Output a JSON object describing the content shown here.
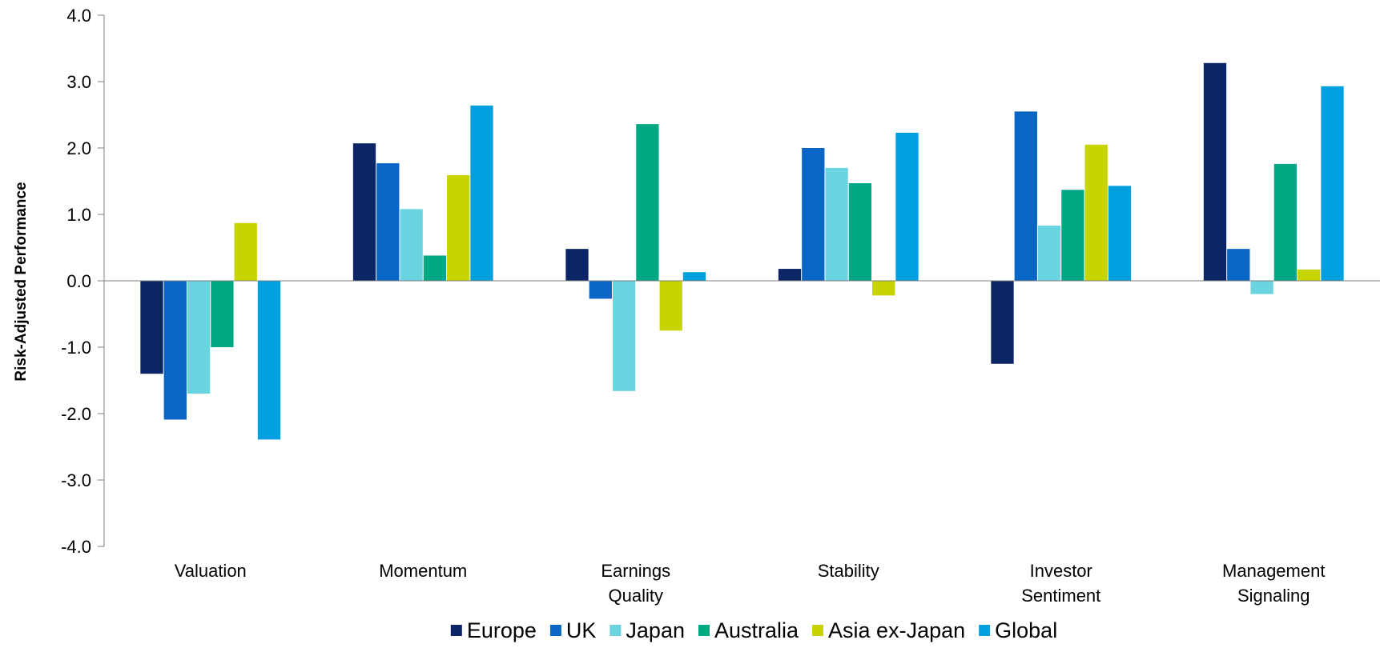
{
  "chart_data": {
    "type": "bar",
    "title": "",
    "xlabel": "",
    "ylabel": "Risk-Adjusted Performance",
    "ylim": [
      -4.0,
      4.0
    ],
    "yticks": [
      "-4.0",
      "-3.0",
      "-2.0",
      "-1.0",
      "0.0",
      "1.0",
      "2.0",
      "3.0",
      "4.0"
    ],
    "categories": [
      [
        "Valuation"
      ],
      [
        "Momentum"
      ],
      [
        "Earnings",
        "Quality"
      ],
      [
        "Stability"
      ],
      [
        "Investor",
        "Sentiment"
      ],
      [
        "Management",
        "Signaling"
      ]
    ],
    "series": [
      {
        "name": "Europe",
        "color": "#0b2566",
        "values": [
          -1.4,
          2.07,
          0.48,
          0.18,
          -1.25,
          3.28
        ]
      },
      {
        "name": "UK",
        "color": "#0a66c5",
        "values": [
          -2.09,
          1.77,
          -0.27,
          2.0,
          2.55,
          0.48
        ]
      },
      {
        "name": "Japan",
        "color": "#6ad4e0",
        "values": [
          -1.7,
          1.08,
          -1.66,
          1.7,
          0.83,
          -0.2
        ]
      },
      {
        "name": "Australia",
        "color": "#00a884",
        "values": [
          -1.0,
          0.38,
          2.36,
          1.47,
          1.37,
          1.76
        ]
      },
      {
        "name": "Asia ex-Japan",
        "color": "#c8d400",
        "values": [
          0.87,
          1.59,
          -0.75,
          -0.22,
          2.05,
          0.17
        ]
      },
      {
        "name": "Global",
        "color": "#00a0e0",
        "values": [
          -2.39,
          2.64,
          0.13,
          2.23,
          1.43,
          2.93
        ]
      }
    ],
    "grid": false,
    "legend_position": "bottom"
  }
}
